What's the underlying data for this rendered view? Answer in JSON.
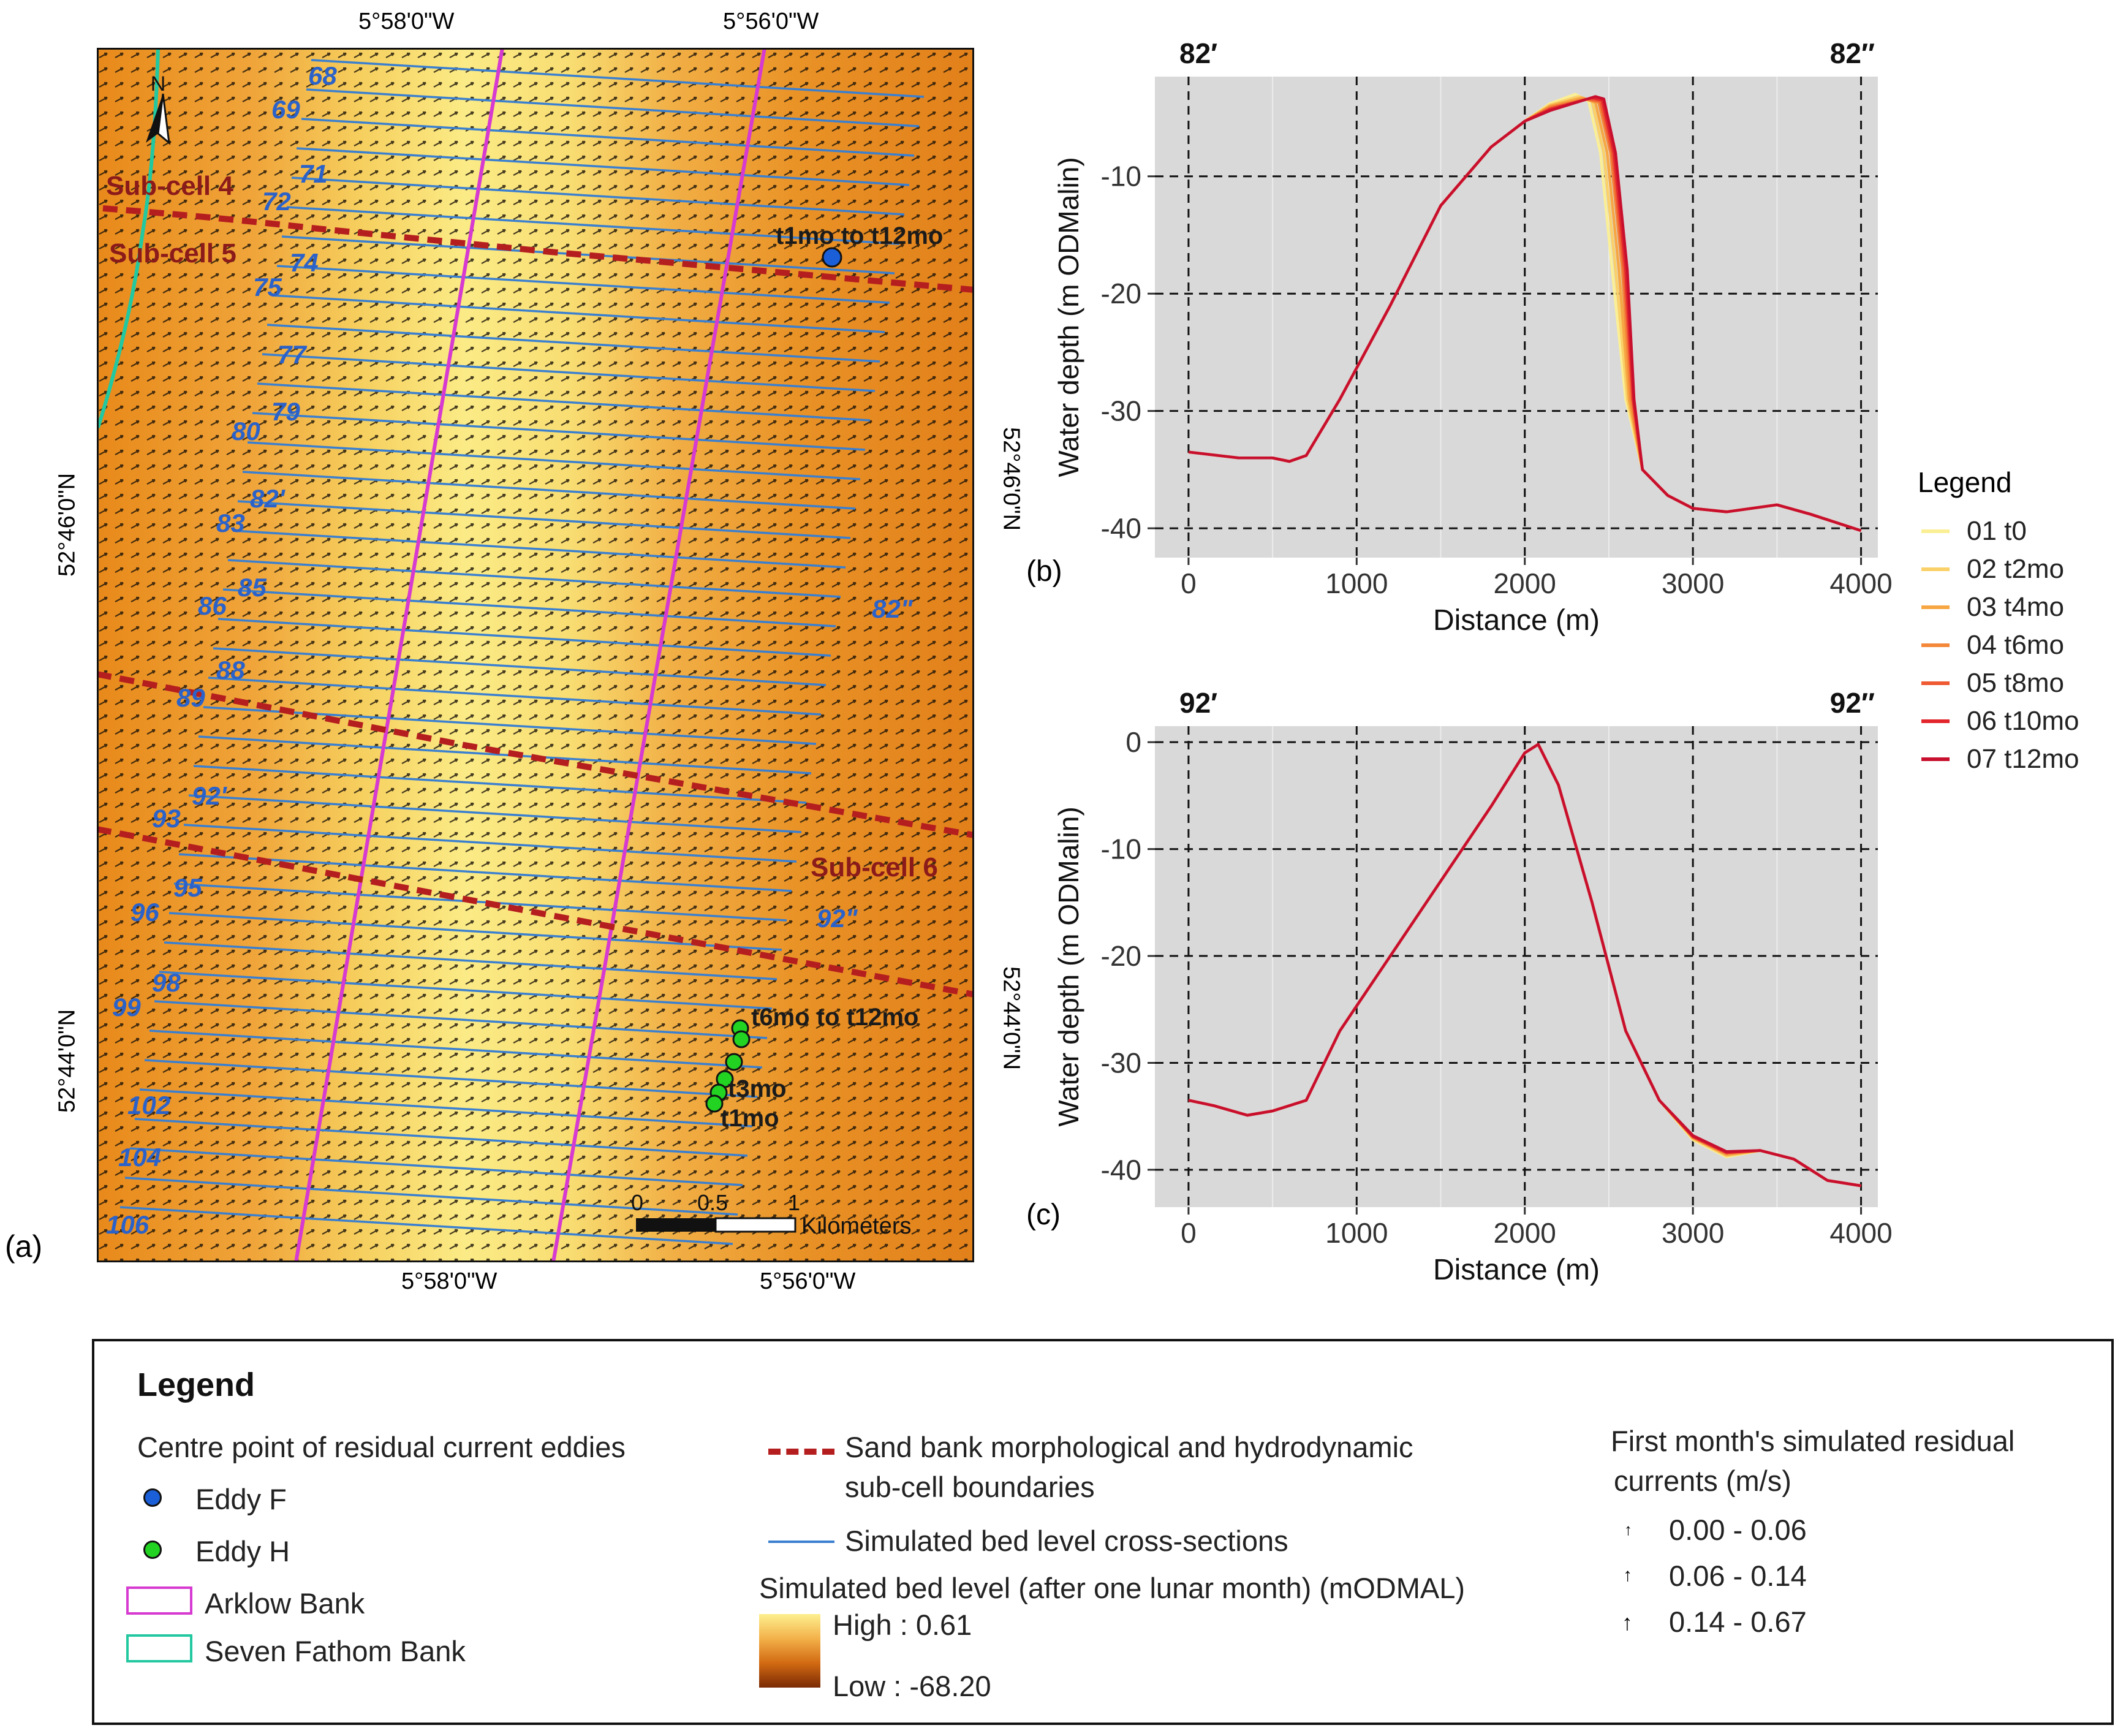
{
  "panel_labels": {
    "a": "(a)",
    "b": "(b)",
    "c": "(c)"
  },
  "map": {
    "top_lon_labels": [
      "5°58'0\"W",
      "5°56'0\"W"
    ],
    "bottom_lon_labels": [
      "5°58'0\"W",
      "5°56'0\"W"
    ],
    "left_lat_labels": [
      "52°46'0\"N",
      "52°44'0\"N"
    ],
    "right_lat_labels": [
      "52°46'0\"N",
      "52°44'0\"N"
    ],
    "north_label": "N",
    "subcell_labels": [
      "Sub-cell 4",
      "Sub-cell 5",
      "Sub-cell 6"
    ],
    "section_labels": [
      "68",
      "69",
      "71",
      "72",
      "74",
      "75",
      "77",
      "79",
      "80",
      "82'",
      "83",
      "85",
      "86",
      "88",
      "89",
      "92'",
      "93",
      "95",
      "96",
      "98",
      "99",
      "102",
      "104",
      "106",
      "82\"",
      "92\""
    ],
    "eddy_labels": [
      "t1mo to t12mo",
      "t6mo to t12mo",
      "t3mo",
      "t1mo"
    ],
    "scale_bar": {
      "ticks": [
        "0",
        "0.5",
        "1"
      ],
      "unit": "Kilometers"
    },
    "colors": {
      "bed_high": "#fbee8a",
      "bed_mid": "#f2a93a",
      "bed_low": "#e07f12",
      "arklow": "#d63ad0",
      "seven_fathom": "#22c8a0",
      "subcell": "#b51e1e",
      "section": "#3a7fd0",
      "eddy_f": "#1a5fd8",
      "eddy_h": "#22d322"
    }
  },
  "chart_data": [
    {
      "type": "line",
      "corner_labels": [
        "82′",
        "82″"
      ],
      "xlabel": "Distance (m)",
      "ylabel": "Water depth (m ODMalin)",
      "xlim": [
        -200,
        4100
      ],
      "ylim": [
        -42.5,
        -1.5
      ],
      "xticks": [
        0,
        1000,
        2000,
        3000,
        4000
      ],
      "yticks": [
        -10,
        -20,
        -30,
        -40
      ],
      "grid": true,
      "series": [
        {
          "name": "01 t0",
          "color": "#fbef96",
          "x": [
            0,
            300,
            500,
            600,
            700,
            900,
            1200,
            1500,
            1800,
            2000,
            2150,
            2300,
            2380,
            2450,
            2520,
            2600,
            2700,
            2850,
            3000,
            3200,
            3500,
            3700,
            4000
          ],
          "y": [
            -33.5,
            -34,
            -34,
            -34.3,
            -33.8,
            -29,
            -21,
            -12.5,
            -7.5,
            -5.3,
            -3.8,
            -3,
            -3.6,
            -8,
            -18,
            -29,
            -35,
            -37.2,
            -38.3,
            -38.6,
            -38,
            -38.8,
            -40.2
          ]
        },
        {
          "name": "02 t2mo",
          "color": "#fad068",
          "x": [
            0,
            300,
            500,
            600,
            700,
            900,
            1200,
            1500,
            1800,
            2000,
            2150,
            2320,
            2400,
            2470,
            2540,
            2610,
            2700,
            2850,
            3000,
            3200,
            3500,
            3700,
            4000
          ],
          "y": [
            -33.5,
            -34,
            -34,
            -34.3,
            -33.8,
            -29,
            -21,
            -12.5,
            -7.5,
            -5.3,
            -3.9,
            -3.2,
            -3.6,
            -8,
            -18,
            -29,
            -35,
            -37.2,
            -38.3,
            -38.6,
            -38,
            -38.8,
            -40.2
          ]
        },
        {
          "name": "03 t4mo",
          "color": "#f6a743",
          "x": [
            0,
            300,
            500,
            600,
            700,
            900,
            1200,
            1500,
            1800,
            2000,
            2150,
            2340,
            2420,
            2490,
            2560,
            2620,
            2700,
            2850,
            3000,
            3200,
            3500,
            3700,
            4000
          ],
          "y": [
            -33.5,
            -34,
            -34,
            -34.3,
            -33.8,
            -29,
            -21,
            -12.5,
            -7.5,
            -5.3,
            -4,
            -3.3,
            -3.7,
            -8,
            -18,
            -29,
            -35,
            -37.2,
            -38.3,
            -38.6,
            -38,
            -38.8,
            -40.2
          ]
        },
        {
          "name": "04 t6mo",
          "color": "#f3883a",
          "x": [
            0,
            300,
            500,
            600,
            700,
            900,
            1200,
            1500,
            1800,
            2000,
            2150,
            2360,
            2440,
            2510,
            2580,
            2630,
            2700,
            2850,
            3000,
            3200,
            3500,
            3700,
            4000
          ],
          "y": [
            -33.5,
            -34,
            -34,
            -34.3,
            -33.8,
            -29,
            -21,
            -12.5,
            -7.5,
            -5.3,
            -4.1,
            -3.4,
            -3.7,
            -8,
            -18,
            -29,
            -35,
            -37.2,
            -38.3,
            -38.6,
            -38,
            -38.8,
            -40.2
          ]
        },
        {
          "name": "05 t8mo",
          "color": "#ef5a33",
          "x": [
            0,
            300,
            500,
            600,
            700,
            900,
            1200,
            1500,
            1800,
            2000,
            2150,
            2380,
            2450,
            2520,
            2590,
            2640,
            2700,
            2850,
            3000,
            3200,
            3500,
            3700,
            4000
          ],
          "y": [
            -33.5,
            -34,
            -34,
            -34.3,
            -33.8,
            -29,
            -21,
            -12.5,
            -7.5,
            -5.3,
            -4.2,
            -3.4,
            -3.6,
            -8,
            -18,
            -29,
            -35,
            -37.2,
            -38.3,
            -38.6,
            -38,
            -38.8,
            -40.2
          ]
        },
        {
          "name": "06 t10mo",
          "color": "#e2262c",
          "x": [
            0,
            300,
            500,
            600,
            700,
            900,
            1200,
            1500,
            1800,
            2000,
            2150,
            2400,
            2460,
            2530,
            2600,
            2645,
            2700,
            2850,
            3000,
            3200,
            3500,
            3700,
            4000
          ],
          "y": [
            -33.5,
            -34,
            -34,
            -34.3,
            -33.8,
            -29,
            -21,
            -12.5,
            -7.5,
            -5.3,
            -4.3,
            -3.3,
            -3.5,
            -8,
            -18,
            -29,
            -35,
            -37.2,
            -38.3,
            -38.6,
            -38,
            -38.8,
            -40.2
          ]
        },
        {
          "name": "07 t12mo",
          "color": "#c8102e",
          "x": [
            0,
            300,
            500,
            600,
            700,
            900,
            1200,
            1500,
            1800,
            2000,
            2150,
            2420,
            2470,
            2540,
            2610,
            2650,
            2700,
            2850,
            3000,
            3200,
            3500,
            3700,
            4000
          ],
          "y": [
            -33.5,
            -34,
            -34,
            -34.3,
            -33.8,
            -29,
            -21,
            -12.5,
            -7.5,
            -5.3,
            -4.4,
            -3.2,
            -3.4,
            -8,
            -18,
            -29,
            -35,
            -37.2,
            -38.3,
            -38.6,
            -38,
            -38.8,
            -40.2
          ]
        }
      ]
    },
    {
      "type": "line",
      "corner_labels": [
        "92′",
        "92″"
      ],
      "xlabel": "Distance (m)",
      "ylabel": "Water depth (m ODMalin)",
      "xlim": [
        -200,
        4100
      ],
      "ylim": [
        -43.5,
        1.5
      ],
      "xticks": [
        0,
        1000,
        2000,
        3000,
        4000
      ],
      "yticks": [
        0,
        -10,
        -20,
        -30,
        -40
      ],
      "grid": true,
      "series": [
        {
          "name": "01 t0",
          "color": "#fbef96",
          "x": [
            0,
            150,
            350,
            500,
            700,
            900,
            1200,
            1500,
            1800,
            2000,
            2080,
            2200,
            2400,
            2600,
            2800,
            3000,
            3200,
            3400,
            3600,
            3800,
            4000
          ],
          "y": [
            -33.5,
            -34,
            -34.9,
            -34.5,
            -33.5,
            -27,
            -20,
            -13,
            -6,
            -1,
            -0.2,
            -4,
            -15,
            -27,
            -33.5,
            -37.2,
            -38.8,
            -38.2,
            -39,
            -41,
            -41.5
          ]
        },
        {
          "name": "02 t2mo",
          "color": "#fad068",
          "x": [
            0,
            150,
            350,
            500,
            700,
            900,
            1200,
            1500,
            1800,
            2000,
            2080,
            2200,
            2400,
            2600,
            2800,
            3000,
            3200,
            3400,
            3600,
            3800,
            4000
          ],
          "y": [
            -33.5,
            -34,
            -34.9,
            -34.5,
            -33.5,
            -27,
            -20,
            -13,
            -6,
            -1,
            -0.2,
            -4,
            -15,
            -27,
            -33.5,
            -37.1,
            -38.7,
            -38.2,
            -39,
            -41,
            -41.5
          ]
        },
        {
          "name": "03 t4mo",
          "color": "#f6a743",
          "x": [
            0,
            150,
            350,
            500,
            700,
            900,
            1200,
            1500,
            1800,
            2000,
            2080,
            2200,
            2400,
            2600,
            2800,
            3000,
            3200,
            3400,
            3600,
            3800,
            4000
          ],
          "y": [
            -33.5,
            -34,
            -34.9,
            -34.5,
            -33.5,
            -27,
            -20,
            -13,
            -6,
            -1,
            -0.2,
            -4,
            -15,
            -27,
            -33.5,
            -37,
            -38.6,
            -38.2,
            -39,
            -41,
            -41.5
          ]
        },
        {
          "name": "04 t6mo",
          "color": "#f3883a",
          "x": [
            0,
            150,
            350,
            500,
            700,
            900,
            1200,
            1500,
            1800,
            2000,
            2080,
            2200,
            2400,
            2600,
            2800,
            3000,
            3200,
            3400,
            3600,
            3800,
            4000
          ],
          "y": [
            -33.5,
            -34,
            -34.9,
            -34.5,
            -33.5,
            -27,
            -20,
            -13,
            -6,
            -1,
            -0.2,
            -4,
            -15,
            -27,
            -33.5,
            -37,
            -38.5,
            -38.2,
            -39,
            -41,
            -41.5
          ]
        },
        {
          "name": "05 t8mo",
          "color": "#ef5a33",
          "x": [
            0,
            150,
            350,
            500,
            700,
            900,
            1200,
            1500,
            1800,
            2000,
            2080,
            2200,
            2400,
            2600,
            2800,
            3000,
            3200,
            3400,
            3600,
            3800,
            4000
          ],
          "y": [
            -33.5,
            -34,
            -34.9,
            -34.5,
            -33.5,
            -27,
            -20,
            -13,
            -6,
            -1,
            -0.2,
            -4,
            -15,
            -27,
            -33.5,
            -36.9,
            -38.4,
            -38.2,
            -39,
            -41,
            -41.5
          ]
        },
        {
          "name": "06 t10mo",
          "color": "#e2262c",
          "x": [
            0,
            150,
            350,
            500,
            700,
            900,
            1200,
            1500,
            1800,
            2000,
            2080,
            2200,
            2400,
            2600,
            2800,
            3000,
            3200,
            3400,
            3600,
            3800,
            4000
          ],
          "y": [
            -33.5,
            -34,
            -34.9,
            -34.5,
            -33.5,
            -27,
            -20,
            -13,
            -6,
            -1,
            -0.2,
            -4,
            -15,
            -27,
            -33.5,
            -36.9,
            -38.4,
            -38.2,
            -39,
            -41,
            -41.5
          ]
        },
        {
          "name": "07 t12mo",
          "color": "#c8102e",
          "x": [
            0,
            150,
            350,
            500,
            700,
            900,
            1200,
            1500,
            1800,
            2000,
            2080,
            2200,
            2400,
            2600,
            2800,
            3000,
            3200,
            3400,
            3600,
            3800,
            4000
          ],
          "y": [
            -33.5,
            -34,
            -34.9,
            -34.5,
            -33.5,
            -27,
            -20,
            -13,
            -6,
            -1,
            -0.2,
            -4,
            -15,
            -27,
            -33.5,
            -36.8,
            -38.3,
            -38.2,
            -39,
            -41,
            -41.5
          ]
        }
      ]
    }
  ],
  "chart_legend": {
    "title": "Legend"
  },
  "bottom_legend": {
    "title": "Legend",
    "eddies_heading": "Centre point of residual current eddies",
    "eddy_f": "Eddy F",
    "eddy_h": "Eddy H",
    "arklow": "Arklow Bank",
    "seven_fathom": "Seven Fathom Bank",
    "subcell_line1": "Sand bank morphological and hydrodynamic",
    "subcell_line2": "sub-cell boundaries",
    "sections": "Simulated bed level cross-sections",
    "bed_heading": "Simulated bed level (after one lunar month) (mODMAL)",
    "bed_high": "High : 0.61",
    "bed_low": "Low : -68.20",
    "currents_heading1": "First month's simulated residual",
    "currents_heading2": "currents (m/s)",
    "current_classes": [
      "0.00 - 0.06",
      "0.06 - 0.14",
      "0.14 - 0.67"
    ]
  }
}
